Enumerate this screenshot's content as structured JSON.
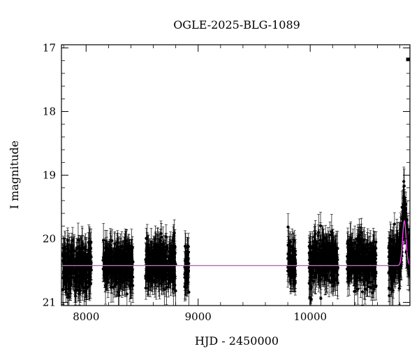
{
  "chart_data": {
    "type": "scatter",
    "title": "OGLE-2025-BLG-1089",
    "xlabel": "HJD - 2450000",
    "ylabel": "I magnitude",
    "xlim": [
      7780,
      10890
    ],
    "ylim": [
      21.05,
      16.95
    ],
    "y_inverted": true,
    "x_ticks": [
      8000,
      9000,
      10000
    ],
    "y_ticks": [
      17,
      18,
      19,
      20,
      21
    ],
    "grid": false,
    "colors": {
      "points": "#000000",
      "model": "#ee44ee"
    },
    "seasons": [
      {
        "x_start": 7790,
        "x_end": 8050,
        "center": 20.45,
        "spread": 0.22,
        "err": 0.22,
        "n": 320
      },
      {
        "x_start": 8150,
        "x_end": 8420,
        "center": 20.4,
        "spread": 0.22,
        "err": 0.22,
        "n": 330
      },
      {
        "x_start": 8530,
        "x_end": 8800,
        "center": 20.4,
        "spread": 0.22,
        "err": 0.22,
        "n": 330
      },
      {
        "x_start": 8880,
        "x_end": 8920,
        "center": 20.42,
        "spread": 0.22,
        "err": 0.22,
        "n": 60
      },
      {
        "x_start": 9800,
        "x_end": 9870,
        "center": 20.4,
        "spread": 0.22,
        "err": 0.22,
        "n": 90
      },
      {
        "x_start": 9990,
        "x_end": 10250,
        "center": 20.35,
        "spread": 0.22,
        "err": 0.22,
        "n": 320
      },
      {
        "x_start": 10330,
        "x_end": 10590,
        "center": 20.35,
        "spread": 0.22,
        "err": 0.22,
        "n": 320
      },
      {
        "x_start": 10700,
        "x_end": 10888,
        "center": 20.3,
        "spread": 0.25,
        "err": 0.22,
        "n": 260
      }
    ],
    "outliers": [
      {
        "x": 10872,
        "y": 17.18
      }
    ],
    "model": {
      "baseline": 20.42,
      "t0": 10840,
      "peak": 19.72,
      "width": 16
    }
  }
}
